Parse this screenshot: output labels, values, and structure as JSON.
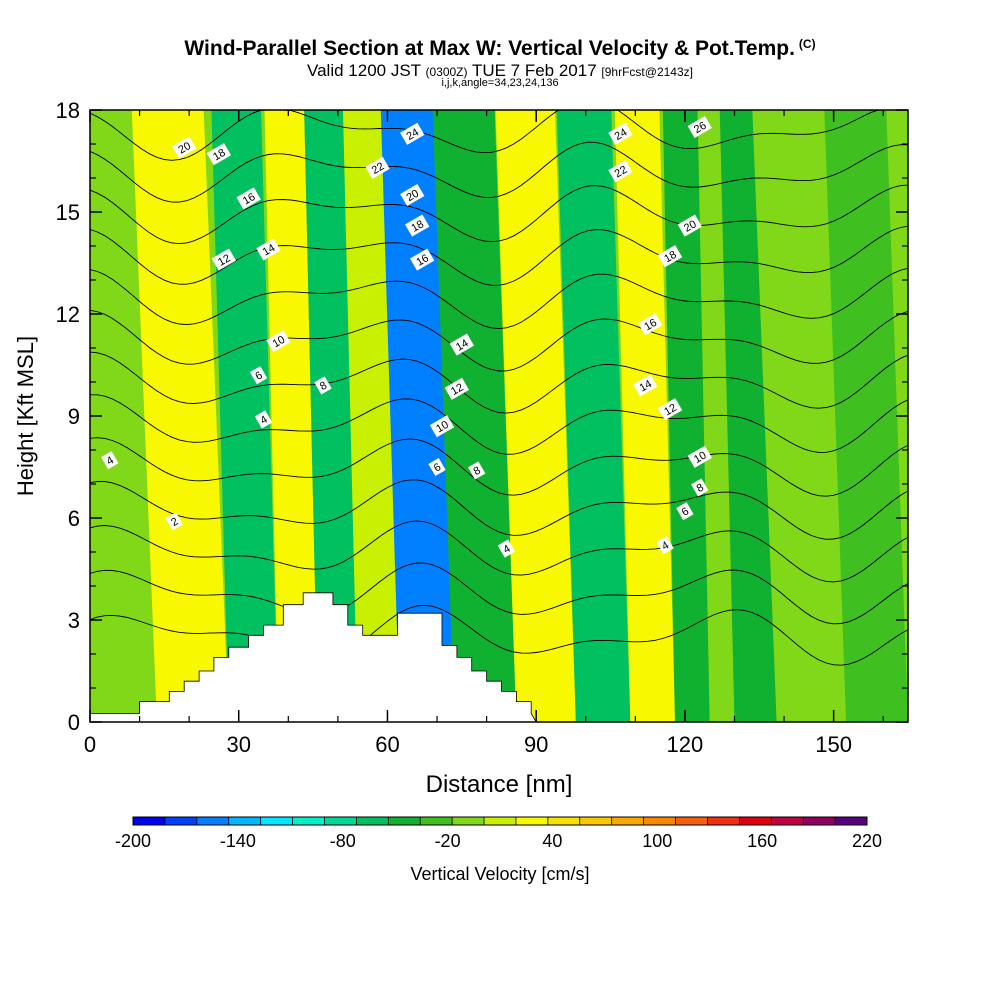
{
  "header": {
    "title": "Wind-Parallel Section at Max W: Vertical Velocity & Pot.Temp.",
    "title_tag": "(C)",
    "valid_prefix": "Valid 1200 JST",
    "valid_utc": "(0300Z)",
    "valid_date": "TUE 7 Feb 2017",
    "forecast": "[9hrFcst@2143z]",
    "indices": "i,j,k,angle=34,23,24,136"
  },
  "chart_data": {
    "type": "heatmap",
    "xlabel": "Distance [nm]",
    "ylabel": "Height [Kft MSL]",
    "xlim": [
      0,
      165
    ],
    "ylim": [
      0,
      18
    ],
    "x_ticks": [
      0,
      30,
      60,
      90,
      120,
      150
    ],
    "y_ticks": [
      0,
      3,
      6,
      9,
      12,
      15,
      18
    ],
    "colorbar": {
      "label": "Vertical Velocity [cm/s]",
      "min": -200,
      "max": 220,
      "step": 20,
      "tick_labels": [
        -200,
        -140,
        -80,
        -20,
        40,
        100,
        160,
        220
      ],
      "colors": [
        "#0000f0",
        "#0040f8",
        "#0080ff",
        "#00b8ff",
        "#00e8ff",
        "#00f0c8",
        "#00d898",
        "#00c060",
        "#10b030",
        "#40c020",
        "#80d818",
        "#c8f000",
        "#f8f800",
        "#f8e000",
        "#f8c800",
        "#f8a800",
        "#f88800",
        "#f86010",
        "#f03010",
        "#e00010",
        "#c00040",
        "#900060",
        "#580080"
      ]
    },
    "velocity_bands": [
      {
        "x": 5,
        "value": 10
      },
      {
        "x": 22,
        "value": 50
      },
      {
        "x": 34,
        "value": -60
      },
      {
        "x": 42,
        "value": 40
      },
      {
        "x": 50,
        "value": -50
      },
      {
        "x": 58,
        "value": 30
      },
      {
        "x": 67,
        "value": -150
      },
      {
        "x": 80,
        "value": -40
      },
      {
        "x": 92,
        "value": 40
      },
      {
        "x": 104,
        "value": -60
      },
      {
        "x": 114,
        "value": 50
      },
      {
        "x": 122,
        "value": -30
      },
      {
        "x": 128,
        "value": 10
      },
      {
        "x": 132,
        "value": -40
      },
      {
        "x": 145,
        "value": 0
      },
      {
        "x": 160,
        "value": -20
      }
    ],
    "theta_contours": [
      {
        "value": 2,
        "label": "2",
        "label_at": [
          17,
          5.9
        ]
      },
      {
        "value": 4,
        "label": "4",
        "label_at": [
          4,
          7.7
        ]
      },
      {
        "value": 6,
        "label": "6",
        "label_at": [
          34,
          10.2
        ]
      },
      {
        "value": 8,
        "label": "8",
        "label_at": [
          47,
          9.9
        ]
      },
      {
        "value": 10,
        "label": "10",
        "label_at": [
          38,
          11.2
        ]
      },
      {
        "value": 12,
        "label": "12",
        "label_at": [
          27,
          13.6
        ]
      },
      {
        "value": 14,
        "label": "14",
        "label_at": [
          36,
          13.9
        ]
      },
      {
        "value": 16,
        "label": "16",
        "label_at": [
          32,
          15.4
        ]
      },
      {
        "value": 18,
        "label": "18",
        "label_at": [
          26,
          16.7
        ]
      },
      {
        "value": 20,
        "label": "20",
        "label_at": [
          19,
          16.9
        ]
      },
      {
        "value": 22,
        "label": "22",
        "label_at": [
          58,
          16.3
        ]
      },
      {
        "value": 24,
        "label": "24",
        "label_at": [
          65,
          17.3
        ]
      },
      {
        "value": 26,
        "label": "26",
        "label_at": [
          123,
          17.5
        ]
      }
    ],
    "extra_contour_labels": [
      {
        "label": "4",
        "at": [
          35,
          8.9
        ]
      },
      {
        "label": "20",
        "at": [
          65,
          15.5
        ]
      },
      {
        "label": "18",
        "at": [
          66,
          14.6
        ]
      },
      {
        "label": "16",
        "at": [
          67,
          13.6
        ]
      },
      {
        "label": "14",
        "at": [
          75,
          11.1
        ]
      },
      {
        "label": "12",
        "at": [
          74,
          9.8
        ]
      },
      {
        "label": "10",
        "at": [
          71,
          8.7
        ]
      },
      {
        "label": "8",
        "at": [
          78,
          7.4
        ]
      },
      {
        "label": "6",
        "at": [
          70,
          7.5
        ]
      },
      {
        "label": "4",
        "at": [
          84,
          5.1
        ]
      },
      {
        "label": "24",
        "at": [
          107,
          17.3
        ]
      },
      {
        "label": "22",
        "at": [
          107,
          16.2
        ]
      },
      {
        "label": "20",
        "at": [
          121,
          14.6
        ]
      },
      {
        "label": "18",
        "at": [
          117,
          13.7
        ]
      },
      {
        "label": "16",
        "at": [
          113,
          11.7
        ]
      },
      {
        "label": "14",
        "at": [
          112,
          9.9
        ]
      },
      {
        "label": "12",
        "at": [
          117,
          9.2
        ]
      },
      {
        "label": "10",
        "at": [
          123,
          7.8
        ]
      },
      {
        "label": "8",
        "at": [
          123,
          6.9
        ]
      },
      {
        "label": "6",
        "at": [
          120,
          6.2
        ]
      },
      {
        "label": "4",
        "at": [
          116,
          5.2
        ]
      }
    ],
    "terrain": [
      [
        0,
        0.25
      ],
      [
        10,
        0.25
      ],
      [
        10,
        0.6
      ],
      [
        16,
        0.6
      ],
      [
        16,
        0.9
      ],
      [
        19,
        0.9
      ],
      [
        19,
        1.2
      ],
      [
        22,
        1.2
      ],
      [
        22,
        1.5
      ],
      [
        25,
        1.5
      ],
      [
        25,
        1.9
      ],
      [
        28,
        1.9
      ],
      [
        28,
        2.2
      ],
      [
        32,
        2.2
      ],
      [
        32,
        2.55
      ],
      [
        35,
        2.55
      ],
      [
        35,
        2.85
      ],
      [
        39,
        2.85
      ],
      [
        39,
        3.45
      ],
      [
        43,
        3.45
      ],
      [
        43,
        3.8
      ],
      [
        49,
        3.8
      ],
      [
        49,
        3.45
      ],
      [
        52,
        3.45
      ],
      [
        52,
        2.85
      ],
      [
        55,
        2.85
      ],
      [
        55,
        2.55
      ],
      [
        62,
        2.55
      ],
      [
        62,
        3.2
      ],
      [
        71,
        3.2
      ],
      [
        71,
        2.25
      ],
      [
        74,
        2.25
      ],
      [
        74,
        1.9
      ],
      [
        77,
        1.9
      ],
      [
        77,
        1.5
      ],
      [
        80,
        1.5
      ],
      [
        80,
        1.2
      ],
      [
        83,
        1.2
      ],
      [
        83,
        0.9
      ],
      [
        86,
        0.9
      ],
      [
        86,
        0.6
      ],
      [
        89,
        0.6
      ],
      [
        89,
        0.25
      ],
      [
        90,
        0
      ]
    ]
  }
}
